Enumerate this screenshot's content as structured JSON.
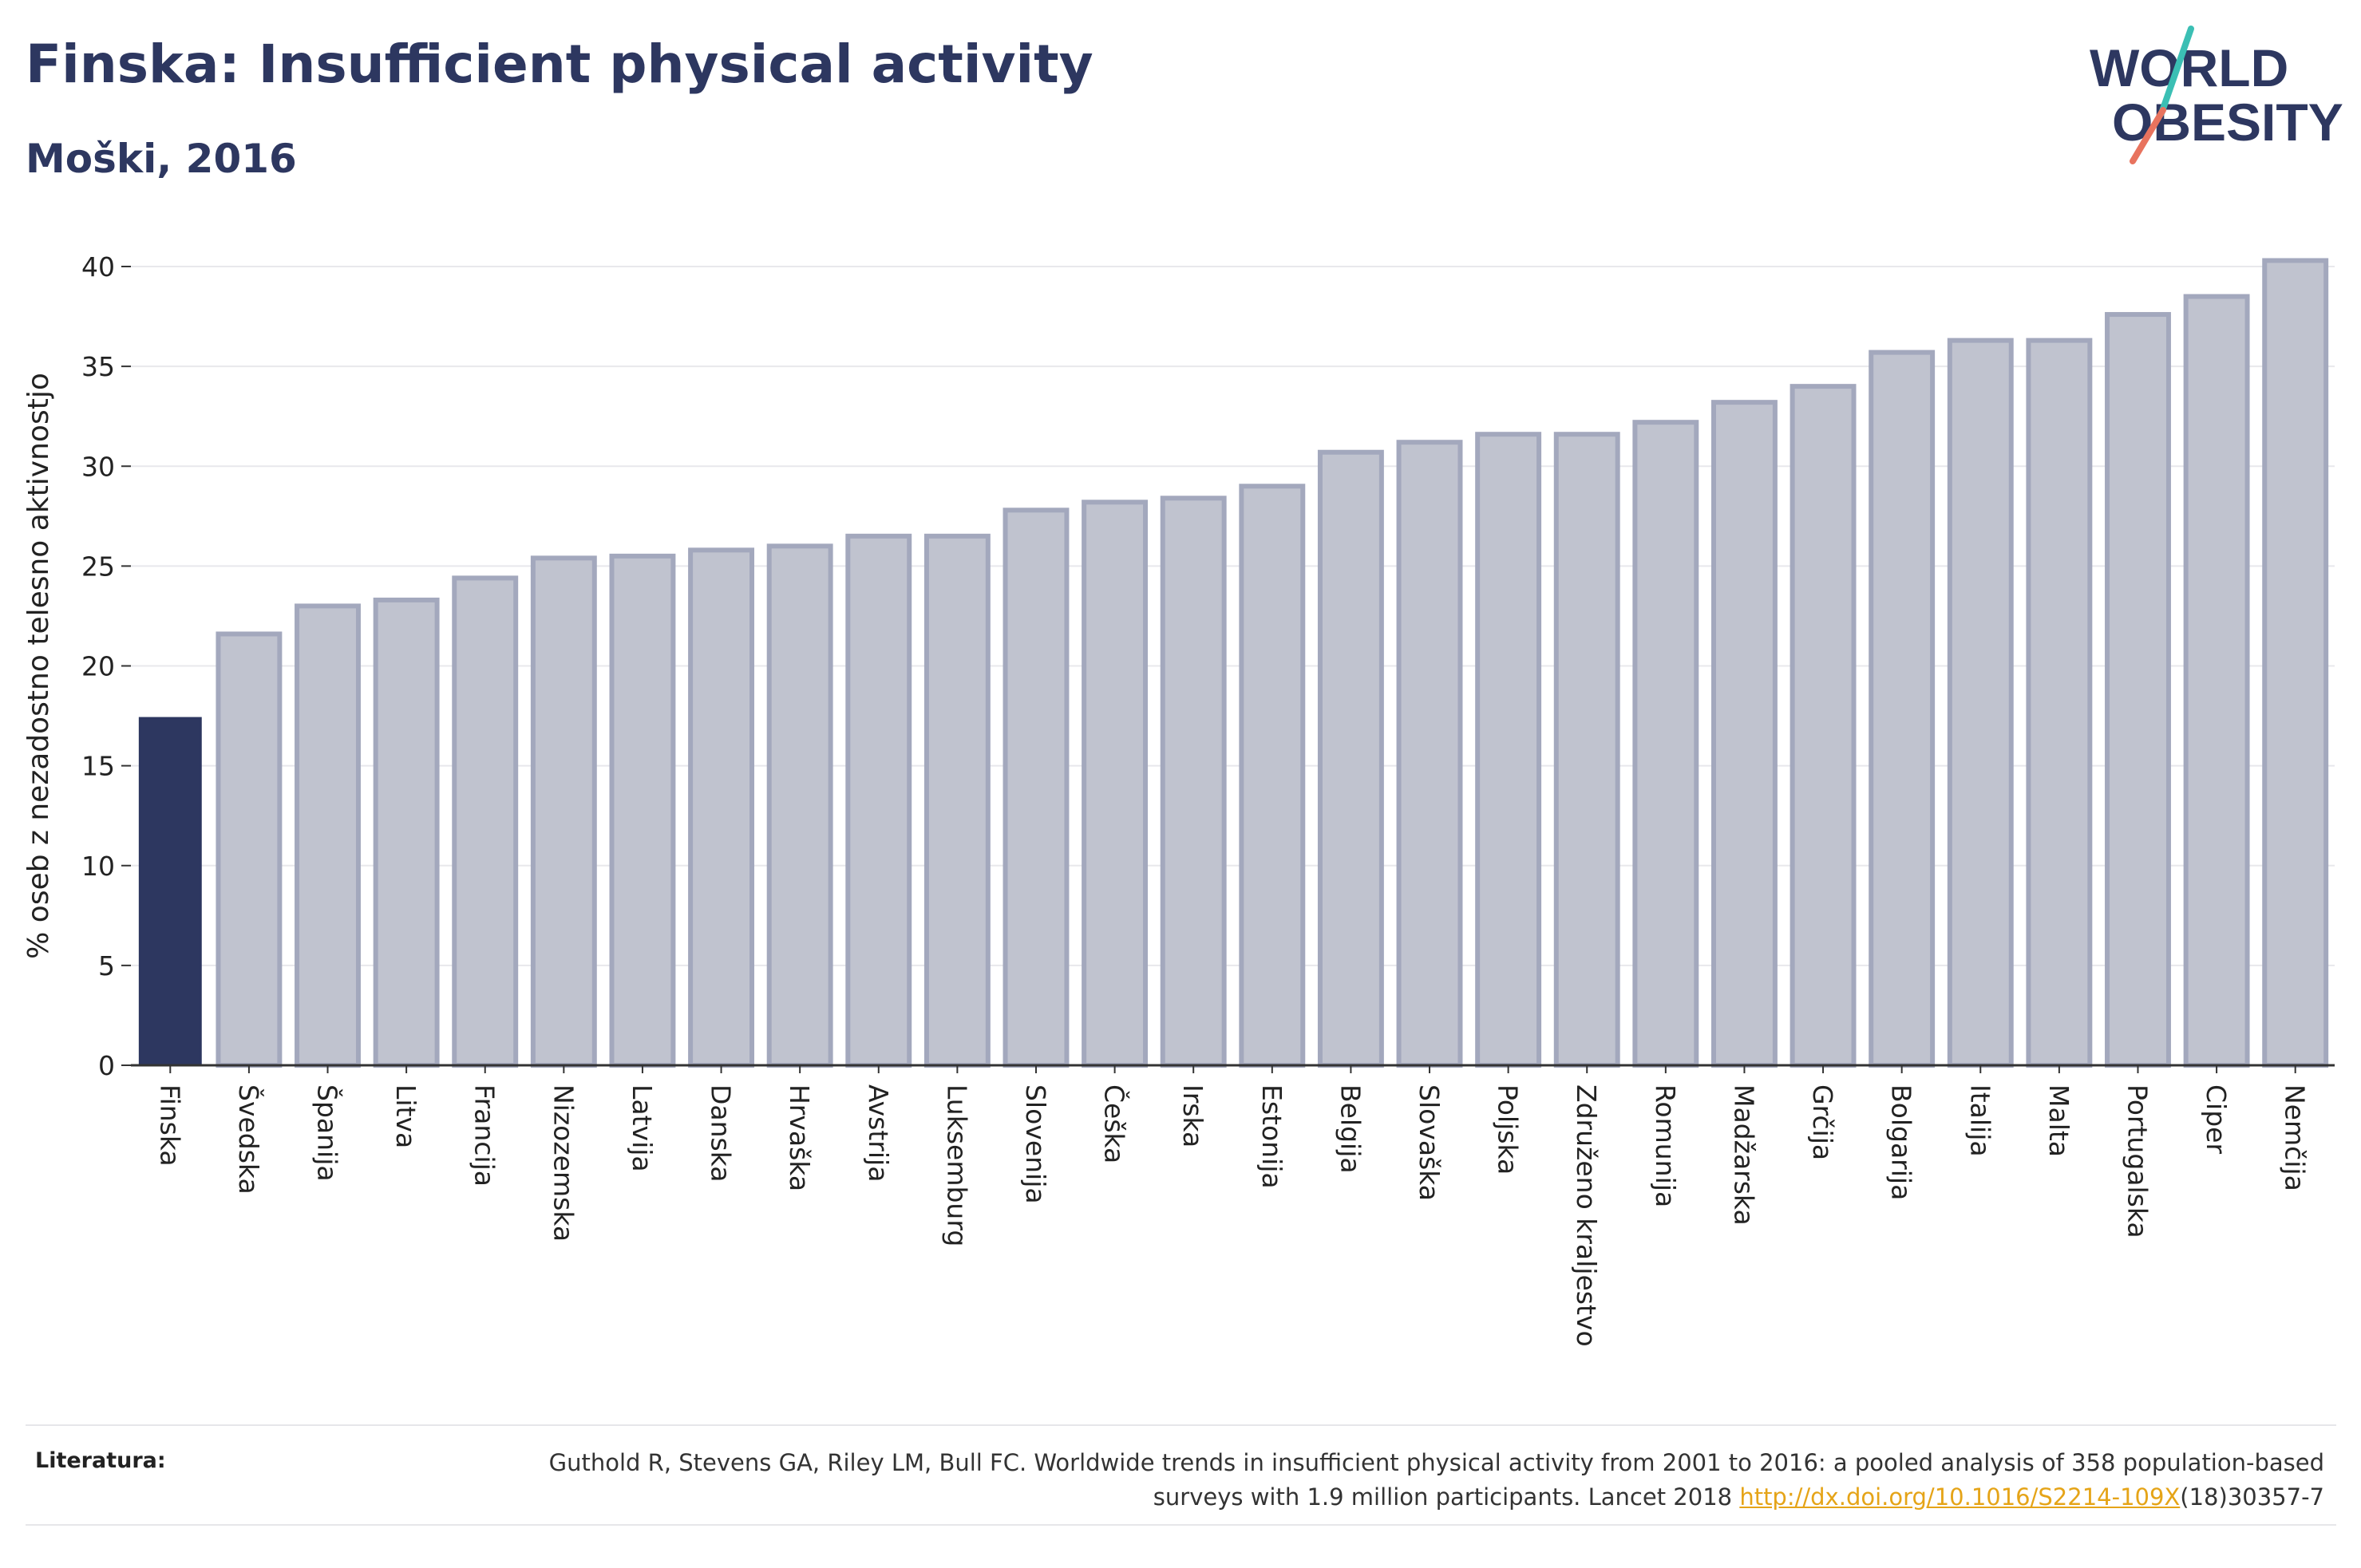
{
  "header": {
    "title": "Finska: Insufficient physical activity",
    "subtitle": "Moški, 2016"
  },
  "logo": {
    "line1": "WORLD",
    "line2": "OBESITY",
    "colors": {
      "text": "#2d3760",
      "slash_teal": "#3bbfb4",
      "slash_coral": "#e8735e"
    }
  },
  "chart_data": {
    "type": "bar",
    "title": "Finska: Insufficient physical activity",
    "subtitle": "Moški, 2016",
    "xlabel": "",
    "ylabel": "% oseb z nezadostno telesno aktivnostjo",
    "ylim": [
      0,
      40
    ],
    "yticks": [
      0,
      5,
      10,
      15,
      20,
      25,
      30,
      35,
      40
    ],
    "grid": true,
    "categories": [
      "Finska",
      "Švedska",
      "Španija",
      "Litva",
      "Francija",
      "Nizozemska",
      "Latvija",
      "Danska",
      "Hrvaška",
      "Avstrija",
      "Luksemburg",
      "Slovenija",
      "Češka",
      "Irska",
      "Estonija",
      "Belgija",
      "Slovaška",
      "Poljska",
      "Združeno kraljestvo",
      "Romunija",
      "Madžarska",
      "Grčija",
      "Bolgarija",
      "Italija",
      "Malta",
      "Portugalska",
      "Ciper",
      "Nemčija"
    ],
    "values": [
      17.4,
      21.6,
      23.0,
      23.3,
      24.4,
      25.4,
      25.5,
      25.8,
      26.0,
      26.5,
      26.5,
      27.8,
      28.2,
      28.4,
      29.0,
      30.7,
      31.2,
      31.6,
      31.6,
      32.2,
      33.2,
      34.0,
      35.7,
      36.3,
      36.3,
      37.6,
      38.5,
      40.3
    ],
    "highlight_index": 0,
    "colors": {
      "highlight": "#2d3760",
      "bar_fill": "#c0c3cf",
      "bar_edge": "#a3a8bd",
      "grid": "#e8e8ec",
      "axis": "#333333"
    }
  },
  "references": {
    "label": "Literatura:",
    "text_before": "Guthold R, Stevens GA, Riley LM, Bull FC. Worldwide trends in insufficient physical activity from 2001 to 2016: a pooled analysis of 358 population-based surveys with 1.9 million participants. Lancet 2018 ",
    "link": "http://dx.doi.org/10.1016/S2214-109X",
    "text_after": "(18)30357-7"
  }
}
